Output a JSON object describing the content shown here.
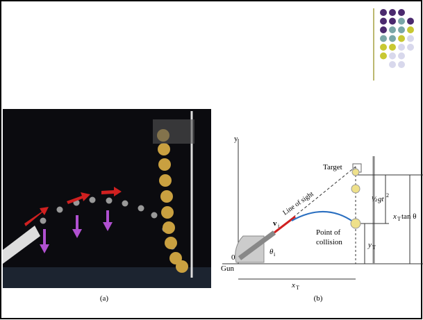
{
  "photo": {
    "caption": "(a)"
  },
  "diagram": {
    "caption": "(b)",
    "labels": {
      "y_axis": "y",
      "target": "Target",
      "line_of_sight": "Line of sight",
      "velocity": "v",
      "velocity_sub": "i",
      "point_of_collision_1": "Point of",
      "point_of_collision_2": "collision",
      "origin": "0",
      "gun": "Gun",
      "angle": "θ",
      "angle_sub": "i",
      "x_distance": "x",
      "x_distance_sub": "T",
      "drop_fraction": "½",
      "drop": "gt",
      "drop_exp": "2",
      "height": "x",
      "height_sub": "T",
      "height_rest": " tan θ",
      "collision_height": "y",
      "collision_height_sub": "T"
    }
  }
}
